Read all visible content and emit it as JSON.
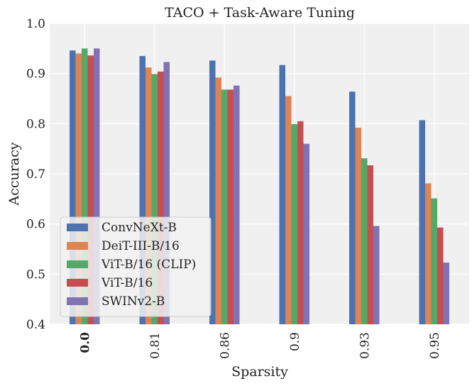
{
  "chart_data": {
    "type": "bar",
    "title": "TACO + Task-Aware Tuning",
    "xlabel": "Sparsity",
    "ylabel": "Accuracy",
    "ylim": [
      0.4,
      1.0
    ],
    "yticks": [
      "0.4",
      "0.5",
      "0.6",
      "0.7",
      "0.8",
      "0.9",
      "1.0"
    ],
    "categories": [
      "0.0",
      "0.81",
      "0.86",
      "0.9",
      "0.93",
      "0.95"
    ],
    "bold_category": "0.0",
    "legend_position": "lower-left",
    "grid": true,
    "series": [
      {
        "name": "ConvNeXt-B",
        "color": "#4c72b0",
        "values": [
          0.946,
          0.935,
          0.926,
          0.917,
          0.864,
          0.807
        ]
      },
      {
        "name": "DeiT-III-B/16",
        "color": "#dd8452",
        "values": [
          0.94,
          0.912,
          0.892,
          0.855,
          0.792,
          0.681
        ]
      },
      {
        "name": "ViT-B/16 (CLIP)",
        "color": "#55a868",
        "values": [
          0.95,
          0.899,
          0.868,
          0.799,
          0.731,
          0.651
        ]
      },
      {
        "name": "ViT-B/16",
        "color": "#c44e52",
        "values": [
          0.936,
          0.904,
          0.868,
          0.805,
          0.717,
          0.593
        ]
      },
      {
        "name": "SWINv2-B",
        "color": "#8172b3",
        "values": [
          0.95,
          0.923,
          0.876,
          0.76,
          0.596,
          0.523
        ]
      }
    ]
  }
}
